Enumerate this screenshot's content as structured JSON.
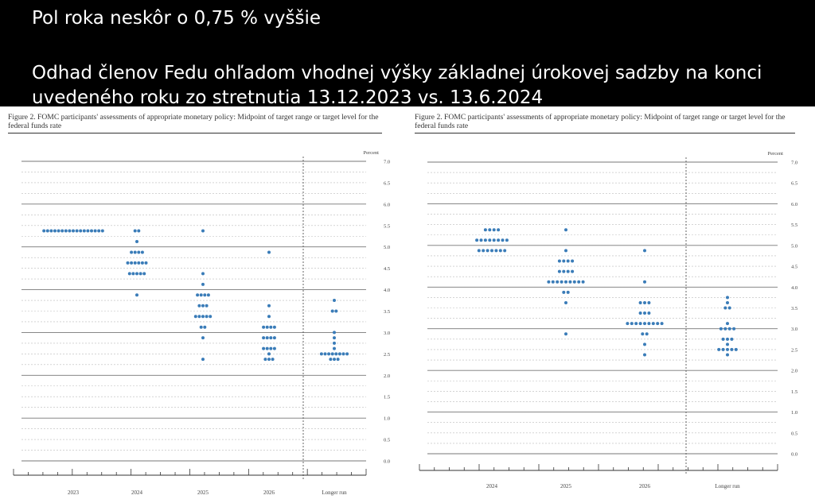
{
  "banner": {
    "headline": "Pol roka neskôr o 0,75 % vyššie",
    "subtitle": "Odhad členov Fedu ohľadom vhodnej výšky základnej úrokovej sadzby na konci uvedeného roku zo stretnutia 13.12.2023 vs. 13.6.2024"
  },
  "chart_data": [
    {
      "type": "scatter",
      "title": "Figure 2. FOMC participants' assessments of appropriate monetary policy: Midpoint of target range or target level for the federal funds rate",
      "ylabel": "Percent",
      "categories": [
        "2023",
        "2024",
        "2025",
        "2026",
        "Longer run"
      ],
      "ylim": [
        0,
        7
      ],
      "y_ticks": [
        "0.0",
        "0.5",
        "1.0",
        "1.5",
        "2.0",
        "2.5",
        "3.0",
        "3.5",
        "4.0",
        "4.5",
        "5.0",
        "5.5",
        "6.0",
        "6.5",
        "7.0"
      ],
      "dot_color": "#3a7cb8",
      "grid": true,
      "longer_run_separator": true,
      "dots": {
        "2023": [
          [
            5.375,
            17
          ]
        ],
        "2024": [
          [
            5.375,
            2
          ],
          [
            5.125,
            1
          ],
          [
            4.875,
            4
          ],
          [
            4.625,
            6
          ],
          [
            4.375,
            5
          ],
          [
            4.125,
            0
          ],
          [
            3.875,
            1
          ]
        ],
        "2025": [
          [
            5.375,
            1
          ],
          [
            4.375,
            1
          ],
          [
            4.125,
            1
          ],
          [
            3.875,
            4
          ],
          [
            3.625,
            3
          ],
          [
            3.375,
            5
          ],
          [
            3.125,
            2
          ],
          [
            2.875,
            1
          ],
          [
            2.375,
            1
          ]
        ],
        "2026": [
          [
            4.875,
            1
          ],
          [
            3.625,
            1
          ],
          [
            3.375,
            1
          ],
          [
            3.125,
            4
          ],
          [
            2.875,
            4
          ],
          [
            2.625,
            4
          ],
          [
            2.5,
            1
          ],
          [
            2.375,
            3
          ]
        ],
        "Longer run": [
          [
            3.75,
            1
          ],
          [
            3.5,
            2
          ],
          [
            3.0,
            1
          ],
          [
            2.875,
            1
          ],
          [
            2.75,
            1
          ],
          [
            2.625,
            1
          ],
          [
            2.5,
            8
          ],
          [
            2.375,
            3
          ]
        ]
      }
    },
    {
      "type": "scatter",
      "title": "Figure 2. FOMC participants' assessments of appropriate monetary policy: Midpoint of target range or target level for the federal funds rate",
      "ylabel": "Percent",
      "categories": [
        "2024",
        "2025",
        "2026",
        "Longer run"
      ],
      "ylim": [
        0,
        7
      ],
      "y_ticks": [
        "0.0",
        "0.5",
        "1.0",
        "1.5",
        "2.0",
        "2.5",
        "3.0",
        "3.5",
        "4.0",
        "4.5",
        "5.0",
        "5.5",
        "6.0",
        "6.5",
        "7.0"
      ],
      "dot_color": "#3a7cb8",
      "grid": true,
      "longer_run_separator": true,
      "dots": {
        "2024": [
          [
            5.375,
            4
          ],
          [
            5.125,
            8
          ],
          [
            4.875,
            7
          ]
        ],
        "2025": [
          [
            5.375,
            1
          ],
          [
            4.875,
            1
          ],
          [
            4.625,
            4
          ],
          [
            4.375,
            4
          ],
          [
            4.125,
            9
          ],
          [
            3.875,
            2
          ],
          [
            3.625,
            1
          ],
          [
            2.875,
            1
          ]
        ],
        "2026": [
          [
            4.875,
            1
          ],
          [
            4.125,
            1
          ],
          [
            3.625,
            3
          ],
          [
            3.375,
            3
          ],
          [
            3.125,
            9
          ],
          [
            2.875,
            2
          ],
          [
            2.625,
            1
          ],
          [
            2.375,
            1
          ]
        ],
        "Longer run": [
          [
            3.75,
            1
          ],
          [
            3.625,
            1
          ],
          [
            3.5,
            2
          ],
          [
            3.125,
            1
          ],
          [
            3.0,
            4
          ],
          [
            2.75,
            3
          ],
          [
            2.625,
            1
          ],
          [
            2.5,
            5
          ],
          [
            2.375,
            1
          ]
        ]
      }
    }
  ]
}
